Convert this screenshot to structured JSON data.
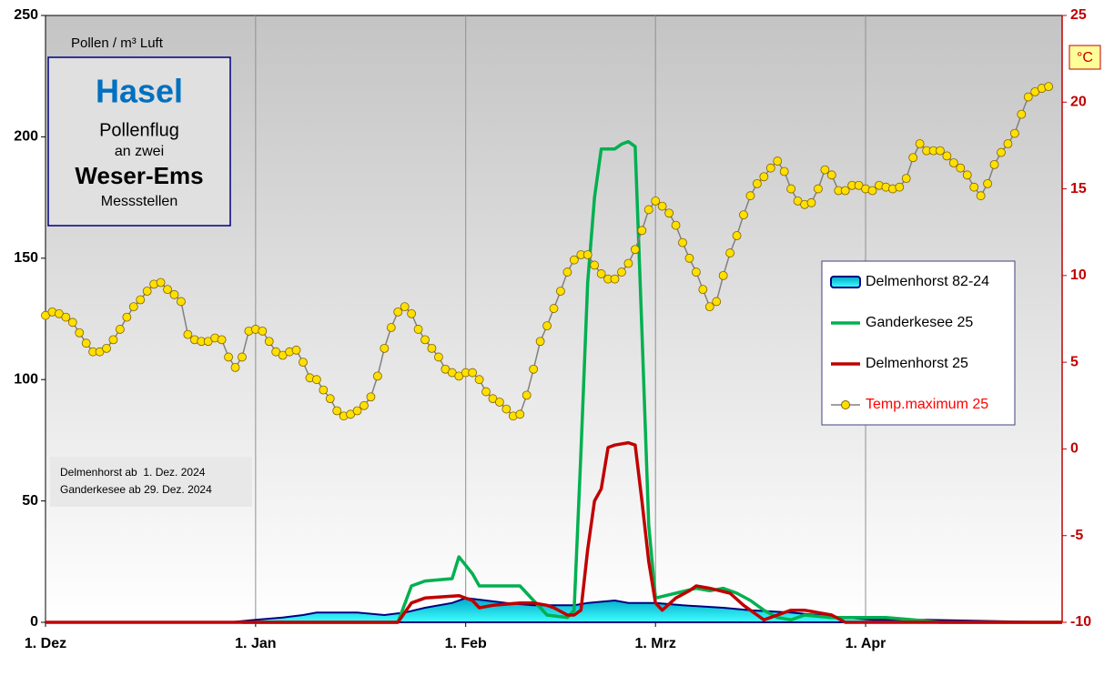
{
  "chart_data": {
    "type": "line",
    "ylabel": "Pollen / m³ Luft",
    "y2label": "°C",
    "title_box": [
      "Hasel",
      "Pollenflug",
      "an zwei",
      "Weser-Ems",
      "Messstellen"
    ],
    "notes": [
      "Delmenhorst ab  1. Dez. 2024",
      "Ganderkesee ab 29. Dez. 2024"
    ],
    "xlim": [
      0,
      150
    ],
    "xticks": [
      {
        "value": 0,
        "label": "1. Dez"
      },
      {
        "value": 31,
        "label": "1. Jan"
      },
      {
        "value": 62,
        "label": "1. Feb"
      },
      {
        "value": 90,
        "label": "1. Mrz"
      },
      {
        "value": 121,
        "label": "1. Apr"
      }
    ],
    "ylim": [
      0,
      250
    ],
    "yticks": [
      0,
      50,
      100,
      150,
      200,
      250
    ],
    "y2lim": [
      -10,
      25
    ],
    "y2ticks": [
      -10,
      -5,
      0,
      5,
      10,
      15,
      20,
      25
    ],
    "grid": true,
    "series": [
      {
        "name": "Delmenhorst 82-24",
        "type": "area",
        "color": "#000080",
        "x": [
          0,
          27,
          31,
          35,
          38,
          40,
          46,
          50,
          53,
          56,
          60,
          62,
          65,
          68,
          72,
          78,
          80,
          84,
          86,
          90,
          94,
          100,
          104,
          110,
          114,
          118,
          122,
          130,
          150
        ],
        "values": [
          0,
          0,
          1,
          2,
          3,
          4,
          4,
          3,
          4,
          6,
          8,
          10,
          9,
          8,
          7,
          7,
          8,
          9,
          8,
          8,
          7,
          6,
          5,
          4,
          3,
          2,
          1,
          1,
          0
        ]
      },
      {
        "name": "Ganderkesee 25",
        "type": "line",
        "color": "#00b050",
        "x": [
          29,
          52,
          54,
          56,
          60,
          61,
          63,
          64,
          68,
          70,
          72,
          74,
          77,
          78,
          79,
          80,
          81,
          82,
          84,
          85,
          86,
          87,
          88,
          89,
          90,
          93,
          96,
          98,
          100,
          102,
          104,
          106,
          108,
          110,
          112,
          116,
          120,
          124,
          128,
          132,
          150
        ],
        "values": [
          0,
          0,
          15,
          17,
          18,
          27,
          20,
          15,
          15,
          15,
          9,
          3,
          2,
          5,
          70,
          140,
          175,
          195,
          195,
          197,
          198,
          196,
          120,
          40,
          10,
          12,
          14,
          13,
          14,
          12,
          9,
          5,
          2,
          1,
          3,
          2,
          2,
          2,
          1,
          0,
          0
        ]
      },
      {
        "name": "Delmenhorst 25",
        "type": "line",
        "color": "#c00000",
        "x": [
          0,
          30,
          52,
          54,
          56,
          61,
          63,
          64,
          66,
          70,
          72,
          74,
          75,
          77,
          78,
          79,
          80,
          81,
          82,
          83,
          84,
          86,
          87,
          88,
          89,
          90,
          91,
          93,
          95,
          96,
          98,
          101,
          103,
          105,
          106,
          108,
          110,
          112,
          114,
          116,
          118,
          150
        ],
        "values": [
          0,
          0,
          0,
          8,
          10,
          11,
          9,
          6,
          7,
          8,
          8,
          7,
          6,
          3,
          3,
          5,
          30,
          50,
          55,
          72,
          73,
          74,
          73,
          50,
          25,
          8,
          5,
          10,
          13,
          15,
          14,
          12,
          7,
          3,
          1,
          3,
          5,
          5,
          4,
          3,
          0,
          0
        ]
      },
      {
        "name": "Temp.maximum 25",
        "type": "line-markers",
        "axis": "y2",
        "color": "#808080",
        "marker_color": "#ffe000",
        "label_color": "#ff0000",
        "x": [
          0,
          1,
          2,
          3,
          4,
          5,
          6,
          7,
          8,
          9,
          10,
          11,
          12,
          13,
          14,
          15,
          16,
          17,
          18,
          19,
          20,
          21,
          22,
          23,
          24,
          25,
          26,
          27,
          28,
          29,
          30,
          31,
          32,
          33,
          34,
          35,
          36,
          37,
          38,
          39,
          40,
          41,
          42,
          43,
          44,
          45,
          46,
          47,
          48,
          49,
          50,
          51,
          52,
          53,
          54,
          55,
          56,
          57,
          58,
          59,
          60,
          61,
          62,
          63,
          64,
          65,
          66,
          67,
          68,
          69,
          70,
          71,
          72,
          73,
          74,
          75,
          76,
          77,
          78,
          79,
          80,
          81,
          82,
          83,
          84,
          85,
          86,
          87,
          88,
          89,
          90,
          91,
          92,
          93,
          94,
          95,
          96,
          97,
          98,
          99,
          100,
          101,
          102,
          103,
          104,
          105,
          106,
          107,
          108,
          109,
          110,
          111,
          112,
          113,
          114,
          115,
          116,
          117,
          118,
          119,
          120,
          121,
          122,
          123,
          124,
          125,
          126,
          127,
          128,
          129,
          130,
          131,
          132,
          133,
          134,
          135,
          136,
          137,
          138,
          139,
          140,
          141,
          142,
          143,
          144,
          145,
          146,
          147,
          148
        ],
        "values": [
          7.7,
          7.9,
          7.8,
          7.6,
          7.3,
          6.7,
          6.1,
          5.6,
          5.6,
          5.8,
          6.3,
          6.9,
          7.6,
          8.2,
          8.6,
          9.1,
          9.5,
          9.6,
          9.2,
          8.9,
          8.5,
          6.6,
          6.3,
          6.2,
          6.2,
          6.4,
          6.3,
          5.3,
          4.7,
          5.3,
          6.8,
          6.9,
          6.8,
          6.2,
          5.6,
          5.4,
          5.6,
          5.7,
          5.0,
          4.1,
          4.0,
          3.4,
          2.9,
          2.2,
          1.9,
          2.0,
          2.2,
          2.5,
          3.0,
          4.2,
          5.8,
          7.0,
          7.9,
          8.2,
          7.8,
          6.9,
          6.3,
          5.8,
          5.3,
          4.6,
          4.4,
          4.2,
          4.4,
          4.4,
          4.0,
          3.3,
          2.9,
          2.7,
          2.3,
          1.9,
          2.0,
          3.1,
          4.6,
          6.2,
          7.1,
          8.1,
          9.1,
          10.2,
          10.9,
          11.2,
          11.2,
          10.6,
          10.1,
          9.8,
          9.8,
          10.2,
          10.7,
          11.5,
          12.6,
          13.8,
          14.3,
          14.0,
          13.6,
          12.9,
          11.9,
          11.0,
          10.2,
          9.2,
          8.2,
          8.5,
          10.0,
          11.3,
          12.3,
          13.5,
          14.6,
          15.3,
          15.7,
          16.2,
          16.6,
          16.0,
          15.0,
          14.3,
          14.1,
          14.2,
          15.0,
          16.1,
          15.8,
          14.9,
          14.9,
          15.2,
          15.2,
          15.0,
          14.9,
          15.2,
          15.1,
          15.0,
          15.1,
          15.6,
          16.8,
          17.6,
          17.2,
          17.2,
          17.2,
          16.9,
          16.5,
          16.2,
          15.8,
          15.1,
          14.6,
          15.3,
          16.4,
          17.1,
          17.6,
          18.2,
          19.3,
          20.3,
          20.6,
          20.8,
          20.9
        ]
      }
    ]
  }
}
